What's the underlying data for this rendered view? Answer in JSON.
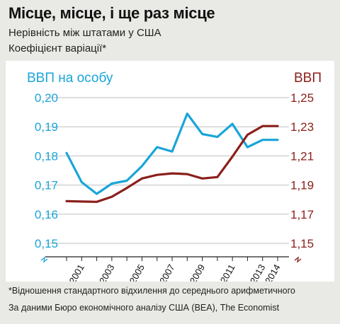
{
  "header": {
    "title": "Місце, місце, і ще раз місце",
    "subtitle": "Нерівність між штатами у США",
    "measure": "Коефіцієнт варіації*"
  },
  "footer": {
    "footnote": "*Відношення стандартного відхилення до середнього арифметичного",
    "source": "За даними Бюро економічного аналізу США (BEA), The Economist"
  },
  "colors": {
    "background": "#e9e9e5",
    "gdp_per_capita": "#1aa5d8",
    "gdp": "#8a1f1a",
    "grid": "#bfbfbf"
  },
  "chart_data": {
    "type": "line",
    "x": [
      2000,
      2001,
      2002,
      2003,
      2004,
      2005,
      2006,
      2007,
      2008,
      2009,
      2010,
      2011,
      2012,
      2013,
      2014
    ],
    "x_tick_labels": [
      "2001",
      "2003",
      "2005",
      "2007",
      "2009",
      "2011",
      "2013",
      "2014"
    ],
    "x_tick_values": [
      2001,
      2003,
      2005,
      2007,
      2009,
      2011,
      2013,
      2014
    ],
    "y_left": {
      "label": "ВВП на особу",
      "lim": [
        0.15,
        0.2
      ],
      "ticks": [
        "0,15",
        "0,16",
        "0,17",
        "0,18",
        "0,19",
        "0,20"
      ],
      "tick_values": [
        0.15,
        0.16,
        0.17,
        0.18,
        0.19,
        0.2
      ]
    },
    "y_right": {
      "label": "ВВП",
      "lim": [
        1.15,
        1.25
      ],
      "ticks": [
        "1,15",
        "1,17",
        "1,19",
        "1,21",
        "1,23",
        "1,25"
      ],
      "tick_values": [
        1.15,
        1.17,
        1.19,
        1.21,
        1.23,
        1.25
      ]
    },
    "series": [
      {
        "name": "ВВП на особу",
        "axis": "left",
        "x": [
          2000,
          2001,
          2002,
          2003,
          2004,
          2005,
          2006,
          2007,
          2008,
          2009,
          2010,
          2011,
          2012,
          2013,
          2014
        ],
        "values": [
          0.181,
          0.171,
          0.167,
          0.1705,
          0.1715,
          0.1765,
          0.183,
          0.1815,
          0.1945,
          0.1875,
          0.1865,
          0.191,
          0.183,
          0.1855,
          0.1855
        ]
      },
      {
        "name": "ВВП",
        "axis": "right",
        "x": [
          2000,
          2001,
          2002,
          2003,
          2004,
          2005,
          2006,
          2007,
          2008,
          2009,
          2010,
          2011,
          2012,
          2013,
          2014
        ],
        "values": [
          1.179,
          1.1787,
          1.1785,
          1.182,
          1.188,
          1.1945,
          1.197,
          1.198,
          1.1975,
          1.1945,
          1.1955,
          1.2095,
          1.2245,
          1.2305,
          1.2305
        ]
      }
    ],
    "grid": true
  }
}
